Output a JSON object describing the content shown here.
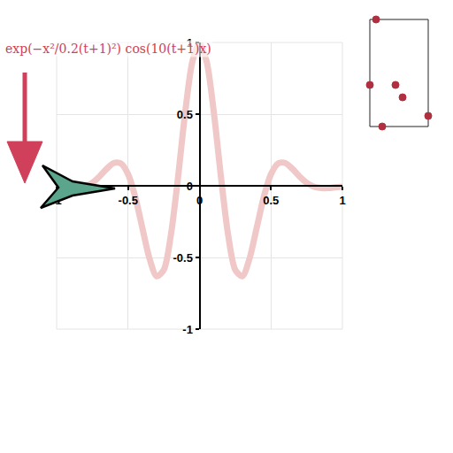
{
  "chart_data": {
    "type": "line",
    "title": "exp(−x²/0.2(t+1)²) cos(10(t+1)x)",
    "x": [
      -1,
      -0.95,
      -0.9,
      -0.85,
      -0.8,
      -0.75,
      -0.7,
      -0.65,
      -0.6,
      -0.55,
      -0.5,
      -0.45,
      -0.4,
      -0.35,
      -0.3,
      -0.25,
      -0.2,
      -0.15,
      -0.1,
      -0.05,
      0,
      0.05,
      0.1,
      0.15,
      0.2,
      0.25,
      0.3,
      0.35,
      0.4,
      0.45,
      0.5,
      0.55,
      0.6,
      0.65,
      0.7,
      0.75,
      0.8,
      0.85,
      0.9,
      0.95,
      1
    ],
    "values": [
      -0.006,
      -0.011,
      -0.016,
      -0.016,
      -0.006,
      0.021,
      0.065,
      0.118,
      0.159,
      0.156,
      0.081,
      -0.077,
      -0.294,
      -0.508,
      -0.631,
      -0.586,
      -0.341,
      0.063,
      0.514,
      0.867,
      1,
      0.867,
      0.514,
      0.063,
      -0.341,
      -0.586,
      -0.631,
      -0.508,
      -0.294,
      -0.077,
      0.081,
      0.156,
      0.159,
      0.118,
      0.065,
      0.021,
      -0.006,
      -0.016,
      -0.016,
      -0.011,
      -0.006
    ],
    "color": "#f0c8c8",
    "xlim": [
      -1,
      1
    ],
    "ylim": [
      -1,
      1
    ],
    "xticks": [
      -1,
      -0.5,
      0,
      0.5,
      1
    ],
    "yticks": [
      -1,
      -0.5,
      0,
      0.5,
      1
    ],
    "grid": true
  }
}
